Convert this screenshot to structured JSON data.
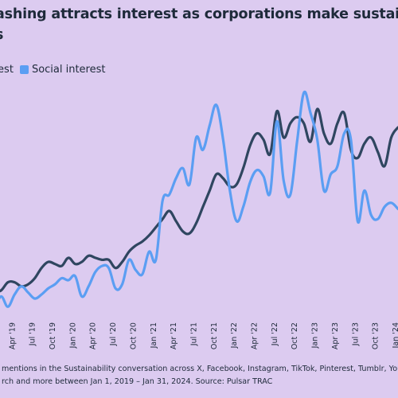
{
  "title": {
    "line1": "ashing attracts interest as corporations make sustai",
    "line2": "s"
  },
  "footnote": {
    "line1": "mentions in the Sustainability conversation across X, Facebook, Instagram, TikTok, Pinterest, Tumblr, YouTube,",
    "line2": "rch and more between Jan 1, 2019 – Jan 31, 2024. Source: Pulsar TRAC"
  },
  "colors": {
    "background": "#dccbf0",
    "media": "#2f4660",
    "social": "#5b9ef3",
    "text": "#1e2a3a"
  },
  "chart_data": {
    "type": "line",
    "title": "",
    "xlabel": "",
    "ylabel": "",
    "grid": false,
    "legend_position": "top-left",
    "ylim": [
      0,
      100
    ],
    "x_tick_labels": [
      "Apr '19",
      "Jul '19",
      "Oct '19",
      "Jan '20",
      "Apr '20",
      "Jul '20",
      "Oct '20",
      "Jan '21",
      "Apr '21",
      "Jul '21",
      "Oct '21",
      "Jan '22",
      "Apr '22",
      "Jul '22",
      "Oct '22",
      "Jan '23",
      "Apr '23",
      "Jul '23",
      "Oct '23",
      "Jan '24"
    ],
    "x": [
      "Jan '19",
      "Feb '19",
      "Mar '19",
      "Apr '19",
      "May '19",
      "Jun '19",
      "Jul '19",
      "Aug '19",
      "Sep '19",
      "Oct '19",
      "Nov '19",
      "Dec '19",
      "Jan '20",
      "Feb '20",
      "Mar '20",
      "Apr '20",
      "May '20",
      "Jun '20",
      "Jul '20",
      "Aug '20",
      "Sep '20",
      "Oct '20",
      "Nov '20",
      "Dec '20",
      "Jan '21",
      "Feb '21",
      "Mar '21",
      "Apr '21",
      "May '21",
      "Jun '21",
      "Jul '21",
      "Aug '21",
      "Sep '21",
      "Oct '21",
      "Nov '21",
      "Dec '21",
      "Jan '22",
      "Feb '22",
      "Mar '22",
      "Apr '22",
      "May '22",
      "Jun '22",
      "Jul '22",
      "Aug '22",
      "Sep '22",
      "Oct '22",
      "Nov '22",
      "Dec '22",
      "Jan '23",
      "Feb '23",
      "Mar '23",
      "Apr '23",
      "May '23",
      "Jun '23",
      "Jul '23",
      "Aug '23",
      "Sep '23",
      "Oct '23",
      "Nov '23",
      "Dec '23",
      "Jan '24"
    ],
    "series": [
      {
        "name": "Media interest",
        "label": "erest",
        "values": [
          10,
          11,
          15,
          15,
          13,
          14,
          17,
          22,
          25,
          24,
          23,
          27,
          24,
          25,
          28,
          27,
          26,
          26,
          22,
          25,
          30,
          33,
          35,
          38,
          42,
          46,
          50,
          45,
          40,
          39,
          44,
          52,
          60,
          68,
          66,
          62,
          63,
          71,
          82,
          88,
          85,
          78,
          99,
          86,
          93,
          96,
          93,
          84,
          100,
          88,
          83,
          93,
          98,
          80,
          76,
          83,
          86,
          79,
          72,
          86,
          91
        ]
      },
      {
        "name": "Social interest",
        "label": "Social interest",
        "values": [
          2,
          8,
          3,
          9,
          13,
          10,
          7,
          9,
          12,
          14,
          17,
          16,
          18,
          8,
          13,
          20,
          23,
          22,
          12,
          14,
          26,
          21,
          19,
          30,
          26,
          55,
          58,
          66,
          71,
          63,
          86,
          80,
          92,
          102,
          85,
          60,
          45,
          52,
          64,
          70,
          67,
          59,
          94,
          65,
          58,
          84,
          108,
          98,
          85,
          60,
          68,
          72,
          88,
          85,
          45,
          60,
          48,
          46,
          52,
          54,
          51
        ]
      }
    ]
  }
}
